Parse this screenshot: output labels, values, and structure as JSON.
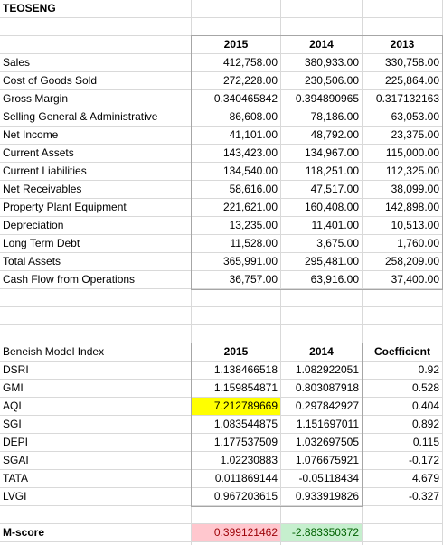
{
  "company": "TEOSENG",
  "financials": {
    "years": [
      "2015",
      "2014",
      "2013"
    ],
    "rows": [
      {
        "label": "Sales",
        "values": [
          "412,758.00",
          "380,933.00",
          "330,758.00"
        ]
      },
      {
        "label": "Cost of Goods Sold",
        "values": [
          "272,228.00",
          "230,506.00",
          "225,864.00"
        ]
      },
      {
        "label": "Gross Margin",
        "values": [
          "0.340465842",
          "0.394890965",
          "0.317132163"
        ]
      },
      {
        "label": "Selling General & Administrative",
        "values": [
          "86,608.00",
          "78,186.00",
          "63,053.00"
        ]
      },
      {
        "label": "Net Income",
        "values": [
          "41,101.00",
          "48,792.00",
          "23,375.00"
        ]
      },
      {
        "label": "Current Assets",
        "values": [
          "143,423.00",
          "134,967.00",
          "115,000.00"
        ]
      },
      {
        "label": "Current Liabilities",
        "values": [
          "134,540.00",
          "118,251.00",
          "112,325.00"
        ]
      },
      {
        "label": "Net Receivables",
        "values": [
          "58,616.00",
          "47,517.00",
          "38,099.00"
        ]
      },
      {
        "label": "Property Plant Equipment",
        "values": [
          "221,621.00",
          "160,408.00",
          "142,898.00"
        ]
      },
      {
        "label": "Depreciation",
        "values": [
          "13,235.00",
          "11,401.00",
          "10,513.00"
        ]
      },
      {
        "label": "Long Term Debt",
        "values": [
          "11,528.00",
          "3,675.00",
          "1,760.00"
        ]
      },
      {
        "label": "Total Assets",
        "values": [
          "365,991.00",
          "295,481.00",
          "258,209.00"
        ]
      },
      {
        "label": "Cash Flow from Operations",
        "values": [
          "36,757.00",
          "63,916.00",
          "37,400.00"
        ]
      }
    ]
  },
  "beneish": {
    "title": "Beneish Model Index",
    "headers": [
      "2015",
      "2014",
      "Coefficient"
    ],
    "rows": [
      {
        "label": "DSRI",
        "values": [
          "1.138466518",
          "1.082922051",
          "0.92"
        ]
      },
      {
        "label": "GMI",
        "values": [
          "1.159854871",
          "0.803087918",
          "0.528"
        ]
      },
      {
        "label": "AQI",
        "values": [
          "7.212789669",
          "0.297842927",
          "0.404"
        ]
      },
      {
        "label": "SGI",
        "values": [
          "1.083544875",
          "1.151697011",
          "0.892"
        ]
      },
      {
        "label": "DEPI",
        "values": [
          "1.177537509",
          "1.032697505",
          "0.115"
        ]
      },
      {
        "label": "SGAI",
        "values": [
          "1.02230883",
          "1.076675921",
          "-0.172"
        ]
      },
      {
        "label": "TATA",
        "values": [
          "0.011869144",
          "-0.05118434",
          "4.679"
        ]
      },
      {
        "label": "LVGI",
        "values": [
          "0.967203615",
          "0.933919826",
          "-0.327"
        ]
      }
    ]
  },
  "mscore": {
    "label": "M-score",
    "values": [
      "0.399121462",
      "-2.883350372"
    ]
  },
  "colors": {
    "highlight_aqi": "#ffff00",
    "mscore_2015_fill": "#ffc7ce",
    "mscore_2014_fill": "#c6efce",
    "mscore_2015_text": "#9c0006",
    "mscore_2014_text": "#006100"
  }
}
